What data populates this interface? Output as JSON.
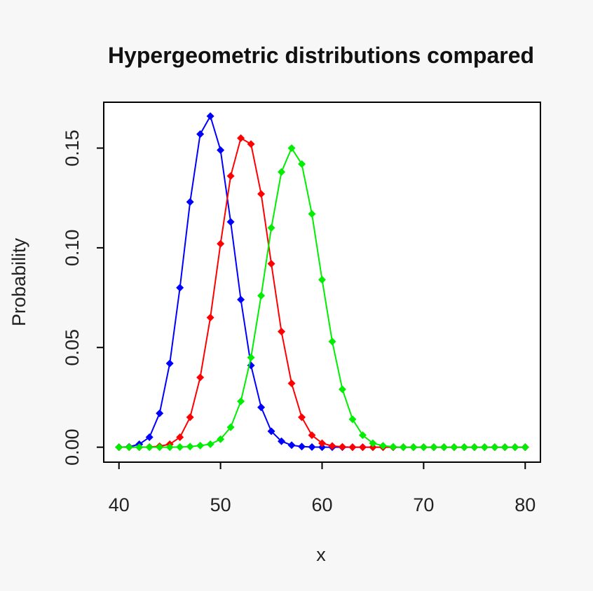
{
  "chart_data": {
    "type": "line",
    "title": "Hypergeometric distributions compared",
    "xlabel": "x",
    "ylabel": "Probability",
    "xlim": [
      38.5,
      81.5
    ],
    "ylim": [
      -0.0075,
      0.173
    ],
    "x_ticks": [
      40,
      50,
      60,
      70,
      80
    ],
    "y_ticks": [
      0.0,
      0.05,
      0.1,
      0.15
    ],
    "x_tick_labels": [
      "40",
      "50",
      "60",
      "70",
      "80"
    ],
    "y_tick_labels": [
      "0.00",
      "0.05",
      "0.10",
      "0.15"
    ],
    "grid": false,
    "legend": "none",
    "x": [
      40,
      41,
      42,
      43,
      44,
      45,
      46,
      47,
      48,
      49,
      50,
      51,
      52,
      53,
      54,
      55,
      56,
      57,
      58,
      59,
      60,
      61,
      62,
      63,
      64,
      65,
      66,
      67,
      68,
      69,
      70,
      71,
      72,
      73,
      74,
      75,
      76,
      77,
      78,
      79,
      80
    ],
    "series": [
      {
        "color": "#0000ff",
        "values": [
          0.0,
          0.0002,
          0.0015,
          0.005,
          0.017,
          0.042,
          0.08,
          0.123,
          0.157,
          0.166,
          0.149,
          0.113,
          0.074,
          0.041,
          0.02,
          0.008,
          0.003,
          0.001,
          0.0003,
          0.0001,
          0.0,
          0.0,
          0.0,
          0.0,
          0.0,
          0.0,
          0.0,
          0.0,
          0.0,
          0.0,
          0.0,
          0.0,
          0.0,
          0.0,
          0.0,
          0.0,
          0.0,
          0.0,
          0.0,
          0.0,
          0.0
        ]
      },
      {
        "color": "#ff0000",
        "values": [
          0.0,
          0.0,
          0.0,
          0.0001,
          0.0005,
          0.0015,
          0.005,
          0.015,
          0.035,
          0.065,
          0.102,
          0.136,
          0.155,
          0.152,
          0.127,
          0.092,
          0.058,
          0.032,
          0.015,
          0.006,
          0.002,
          0.0006,
          0.0002,
          0.0,
          0.0,
          0.0,
          0.0,
          0.0,
          0.0,
          0.0,
          0.0,
          0.0,
          0.0,
          0.0,
          0.0,
          0.0,
          0.0,
          0.0,
          0.0,
          0.0,
          0.0
        ]
      },
      {
        "color": "#00ee00",
        "values": [
          0.0,
          0.0,
          0.0,
          0.0,
          0.0,
          0.0,
          0.0001,
          0.0003,
          0.0008,
          0.0015,
          0.004,
          0.01,
          0.023,
          0.045,
          0.076,
          0.11,
          0.138,
          0.15,
          0.142,
          0.117,
          0.084,
          0.053,
          0.029,
          0.014,
          0.006,
          0.002,
          0.0007,
          0.0002,
          0.0,
          0.0,
          0.0,
          0.0,
          0.0,
          0.0,
          0.0,
          0.0,
          0.0,
          0.0,
          0.0,
          0.0,
          0.0
        ]
      }
    ]
  }
}
